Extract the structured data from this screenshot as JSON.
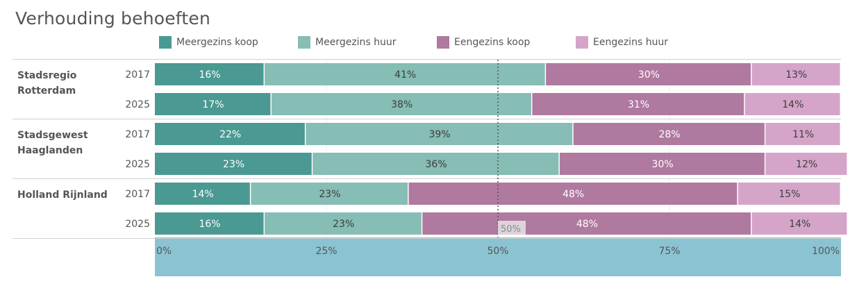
{
  "title": "Verhouding behoeften",
  "colors": {
    "meergezins_koop": "#4a9992",
    "meergezins_huur": "#86bdb4",
    "eengezins_koop": "#b0799f",
    "eengezins_huur": "#d5a5c9",
    "axis_band": "#8bc3d2",
    "text": "#555555"
  },
  "legend": [
    {
      "label": "Meergezins koop",
      "color_key": "meergezins_koop"
    },
    {
      "label": "Meergezins huur",
      "color_key": "meergezins_huur"
    },
    {
      "label": "Eengezins koop",
      "color_key": "eengezins_koop"
    },
    {
      "label": "Eengezins huur",
      "color_key": "eengezins_huur"
    }
  ],
  "chart_data": {
    "type": "bar",
    "orientation": "horizontal",
    "stacked": "100%",
    "title": "Verhouding behoeften",
    "series_names": [
      "Meergezins koop",
      "Meergezins huur",
      "Eengezins koop",
      "Eengezins huur"
    ],
    "groups": [
      {
        "region": "Stadsregio Rotterdam",
        "region_lines": [
          "Stadsregio",
          "Rotterdam"
        ],
        "rows": [
          {
            "year": "2017",
            "values": [
              16,
              41,
              30,
              13
            ],
            "labels": [
              "16%",
              "41%",
              "30%",
              "13%"
            ]
          },
          {
            "year": "2025",
            "values": [
              17,
              38,
              31,
              14
            ],
            "labels": [
              "17%",
              "38%",
              "31%",
              "14%"
            ]
          }
        ]
      },
      {
        "region": "Stadsgewest Haaglanden",
        "region_lines": [
          "Stadsgewest",
          "Haaglanden"
        ],
        "rows": [
          {
            "year": "2017",
            "values": [
              22,
              39,
              28,
              11
            ],
            "labels": [
              "22%",
              "39%",
              "28%",
              "11%"
            ]
          },
          {
            "year": "2025",
            "values": [
              23,
              36,
              30,
              12
            ],
            "labels": [
              "23%",
              "36%",
              "30%",
              "12%"
            ]
          }
        ]
      },
      {
        "region": "Holland Rijnland",
        "region_lines": [
          "Holland Rijnland"
        ],
        "rows": [
          {
            "year": "2017",
            "values": [
              14,
              23,
              48,
              15
            ],
            "labels": [
              "14%",
              "23%",
              "48%",
              "15%"
            ]
          },
          {
            "year": "2025",
            "values": [
              16,
              23,
              48,
              14
            ],
            "labels": [
              "16%",
              "23%",
              "48%",
              "14%"
            ]
          }
        ]
      }
    ],
    "xlim": [
      0,
      100
    ],
    "x_ticks": [
      0,
      25,
      50,
      75,
      100
    ],
    "x_tick_labels": [
      "0%",
      "25%",
      "50%",
      "75%",
      "100%"
    ],
    "reference_line": {
      "value": 50,
      "label": "50%"
    }
  }
}
